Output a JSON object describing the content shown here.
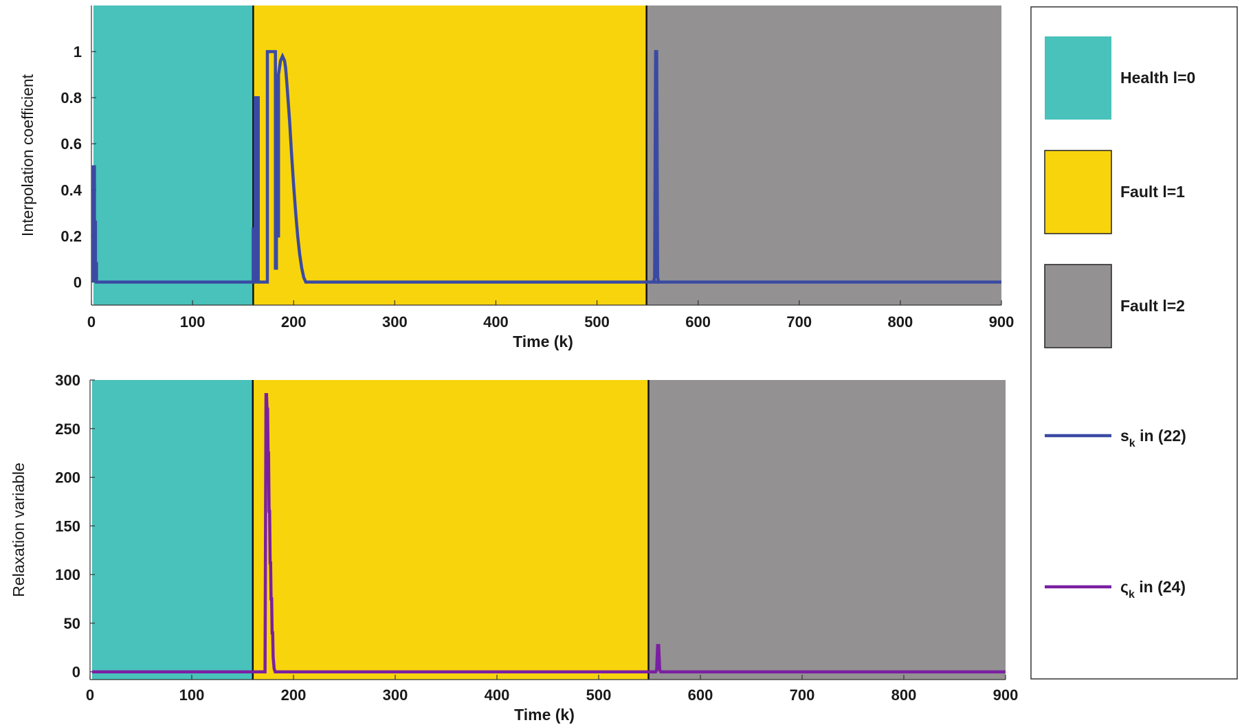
{
  "chart_data": [
    {
      "type": "line",
      "ylabel": "Interpolation coefficient",
      "xlabel": "Time (k)",
      "xlim": [
        0,
        900
      ],
      "ylim": [
        -0.1,
        1.2
      ],
      "xticks": [
        0,
        100,
        200,
        300,
        400,
        500,
        600,
        700,
        800,
        900
      ],
      "yticks": [
        0,
        0.2,
        0.4,
        0.6,
        0.8,
        1
      ],
      "ytick_labels": [
        "0",
        "0.2",
        "0.4",
        "0.6",
        "0.8",
        "1"
      ],
      "regions": [
        {
          "label": "Health l=0",
          "x": [
            2,
            160
          ],
          "color": "#48c2bb"
        },
        {
          "label": "Fault l=1",
          "x": [
            160,
            549
          ],
          "color": "#f8d40d"
        },
        {
          "label": "Fault l=2",
          "x": [
            549,
            900
          ],
          "color": "#939191"
        }
      ],
      "boundaries": [
        160,
        549
      ],
      "series": [
        {
          "label": "s_k in (22)",
          "color": "#3a4aa3",
          "x": [
            2,
            2,
            3,
            3,
            4,
            4,
            5,
            5,
            5,
            160,
            160,
            161,
            161,
            162,
            162,
            163,
            163,
            164,
            164,
            165,
            165,
            166,
            166,
            174,
            174,
            175,
            175,
            182,
            182,
            183,
            183,
            184,
            184,
            185,
            185,
            187,
            189,
            190,
            191,
            192,
            193,
            194,
            196,
            198,
            200,
            202,
            204,
            206,
            208,
            210,
            212,
            214,
            900
          ],
          "y": [
            0,
            0.5,
            0.5,
            0.26,
            0.26,
            0.08,
            0.08,
            0,
            0,
            0,
            0.23,
            0.23,
            0,
            0,
            0.8,
            0.8,
            0,
            0,
            0.8,
            0.8,
            0,
            0,
            0,
            0,
            1,
            1,
            1,
            1,
            0.06,
            0.06,
            0.8,
            0.8,
            0.2,
            0.2,
            0.9,
            0.96,
            0.98,
            0.97,
            0.96,
            0.93,
            0.88,
            0.82,
            0.7,
            0.55,
            0.42,
            0.3,
            0.2,
            0.12,
            0.06,
            0.02,
            0,
            0,
            0
          ]
        },
        {
          "label": "s_k in (22) spike",
          "color": "#3a4aa3",
          "x": [
            556,
            557,
            558,
            559,
            560,
            561,
            562
          ],
          "y": [
            0,
            0.02,
            1,
            1,
            0.02,
            0,
            0
          ]
        }
      ]
    },
    {
      "type": "line",
      "ylabel": "Relaxation variable",
      "xlabel": "Time (k)",
      "xlim": [
        0,
        900
      ],
      "ylim": [
        -8,
        300
      ],
      "xticks": [
        0,
        100,
        200,
        300,
        400,
        500,
        600,
        700,
        800,
        900
      ],
      "yticks": [
        0,
        50,
        100,
        150,
        200,
        250,
        300
      ],
      "ytick_labels": [
        "0",
        "50",
        "100",
        "150",
        "200",
        "250",
        "300"
      ],
      "regions": [
        {
          "label": "Health l=0",
          "x": [
            2,
            160
          ],
          "color": "#48c2bb"
        },
        {
          "label": "Fault l=1",
          "x": [
            160,
            549
          ],
          "color": "#f8d40d"
        },
        {
          "label": "Fault l=2",
          "x": [
            549,
            900
          ],
          "color": "#939191"
        }
      ],
      "boundaries": [
        160,
        549
      ],
      "series": [
        {
          "label": "ς_k in (24)",
          "color": "#7b1fa2",
          "x": [
            2,
            172,
            173,
            173.5,
            174,
            174.5,
            175,
            175.5,
            176,
            176.5,
            177,
            177.5,
            178,
            178.5,
            179,
            179.5,
            180,
            181,
            182,
            556,
            557,
            558,
            559,
            560,
            561,
            900
          ],
          "y": [
            0,
            0,
            285,
            285,
            270,
            270,
            225,
            225,
            165,
            165,
            112,
            112,
            75,
            75,
            40,
            40,
            15,
            3,
            0,
            0,
            2,
            27,
            27,
            2,
            0,
            0
          ]
        }
      ]
    }
  ],
  "legend": {
    "items": [
      {
        "kind": "patch",
        "label": "Health l=0",
        "color": "#48c2bb"
      },
      {
        "kind": "patch",
        "label": "Fault l=1",
        "color": "#f8d40d"
      },
      {
        "kind": "patch",
        "label": "Fault l=2",
        "color": "#939191"
      },
      {
        "kind": "line",
        "symbol": "s",
        "sub": "k",
        "rest": " in (22)",
        "color": "#3a4aa3"
      },
      {
        "kind": "line",
        "symbol": "ς",
        "sub": "k",
        "rest": " in (24)",
        "color": "#7b1fa2"
      }
    ]
  }
}
